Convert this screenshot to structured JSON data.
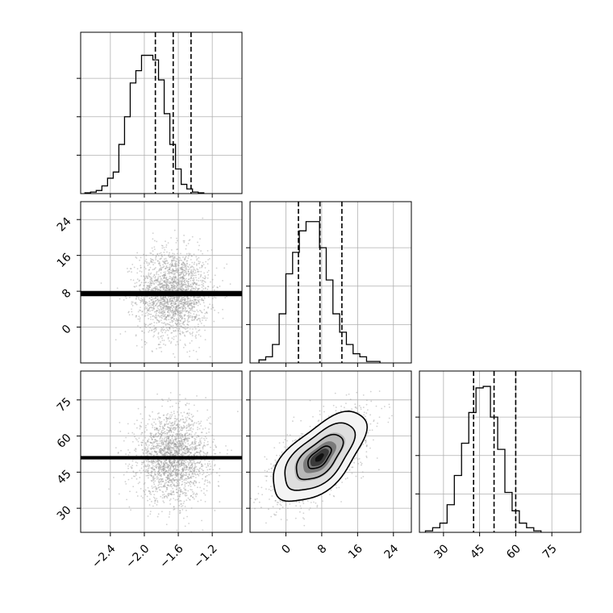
{
  "chart_data": {
    "type": "corner",
    "title": "",
    "grid": true,
    "params": [
      {
        "range": [
          -2.75,
          -0.85
        ],
        "ticks": [
          -2.4,
          -2.0,
          -1.6,
          -1.2
        ],
        "tick_labels": [
          "−2.4",
          "−2.0",
          "−1.6",
          "−1.2"
        ],
        "quantiles": [
          -1.87,
          -1.66,
          -1.45
        ]
      },
      {
        "range": [
          -8,
          28
        ],
        "ticks": [
          0,
          8,
          16,
          24
        ],
        "tick_labels": [
          "0",
          "8",
          "16",
          "24"
        ],
        "quantiles": [
          2.8,
          7.6,
          12.5
        ]
      },
      {
        "range": [
          20,
          87
        ],
        "ticks": [
          30,
          45,
          60,
          75
        ],
        "tick_labels": [
          "30",
          "45",
          "60",
          "75"
        ],
        "quantiles": [
          42.5,
          51.0,
          60.0
        ]
      }
    ],
    "histograms": [
      {
        "bin_start": -2.7,
        "bin_width": 0.0667,
        "counts": [
          0.005,
          0.01,
          0.02,
          0.05,
          0.1,
          0.14,
          0.32,
          0.5,
          0.72,
          0.8,
          0.9,
          0.9,
          0.87,
          0.74,
          0.52,
          0.32,
          0.16,
          0.06,
          0.03,
          0.01,
          0.005
        ],
        "max": 1.0
      },
      {
        "bin_start": -6.0,
        "bin_width": 1.5,
        "counts": [
          0.02,
          0.04,
          0.12,
          0.32,
          0.58,
          0.72,
          0.86,
          0.92,
          0.92,
          0.75,
          0.54,
          0.32,
          0.2,
          0.12,
          0.06,
          0.04,
          0.01,
          0.01
        ],
        "max": 1.0
      },
      {
        "bin_start": 22.5,
        "bin_width": 3.0,
        "counts": [
          0.01,
          0.03,
          0.06,
          0.18,
          0.37,
          0.58,
          0.78,
          0.94,
          0.95,
          0.75,
          0.54,
          0.26,
          0.14,
          0.06,
          0.03,
          0.01
        ],
        "max": 1.0
      }
    ],
    "pairs": [
      {
        "x_param": 0,
        "y_param": 1,
        "mean": [
          -1.66,
          7.5
        ],
        "sigma": [
          0.21,
          4.9
        ],
        "rho": 0.0,
        "contours": [
          0.5,
          1.0,
          1.5,
          2.0
        ],
        "n_points": 2200
      },
      {
        "x_param": 0,
        "y_param": 2,
        "mean": [
          -1.66,
          51.0
        ],
        "sigma": [
          0.21,
          8.8
        ],
        "rho": 0.0,
        "contours": [
          0.5,
          1.0,
          1.5,
          2.0
        ],
        "n_points": 2200
      },
      {
        "x_param": 1,
        "y_param": 2,
        "mean": [
          7.5,
          51.0
        ],
        "sigma": [
          4.9,
          8.8
        ],
        "rho": 0.62,
        "contours": [
          0.5,
          1.0,
          1.5,
          2.0
        ],
        "n_points": 2200
      }
    ]
  }
}
